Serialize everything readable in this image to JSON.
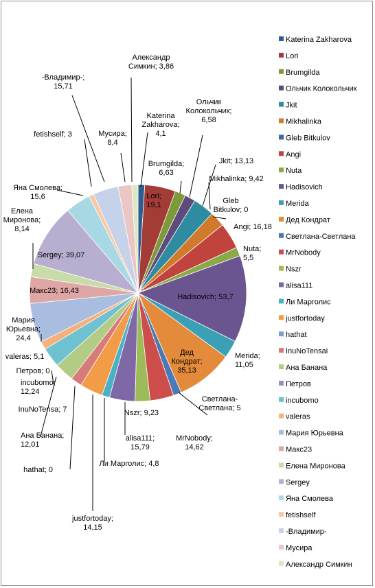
{
  "chart_data": {
    "type": "pie",
    "title": "",
    "legend_position": "right",
    "slices": [
      {
        "name": "Katerina Zakharova",
        "value": 4.1,
        "label": "Katerina\nZakharova;\n4,1",
        "color": "#2e5d8f"
      },
      {
        "name": "Lori",
        "value": 19.1,
        "label": "Lori;\n19,1",
        "color": "#a33b36"
      },
      {
        "name": "Brumgilda",
        "value": 6.63,
        "label": "Brumgilda;\n6,63",
        "color": "#7d9a3a"
      },
      {
        "name": "Ольчик Колокольчик",
        "value": 6.58,
        "label": "Ольчик\nКолокольчик;\n6,58",
        "color": "#5e4a7d"
      },
      {
        "name": "Jkit",
        "value": 13.13,
        "label": "Jkit; 13,13",
        "color": "#2f8ba0"
      },
      {
        "name": "Mikhalinka",
        "value": 9.42,
        "label": "Mikhalinka; 9,42",
        "color": "#d07a2c"
      },
      {
        "name": "Gleb Bitkulov",
        "value": 0,
        "label": "Gleb\nBitkulov; 0",
        "color": "#3b6aa0"
      },
      {
        "name": "Angi",
        "value": 16.18,
        "label": "Angi; 16,18",
        "color": "#c0433e"
      },
      {
        "name": "Nuta",
        "value": 5.5,
        "label": "Nuta;\n5,5",
        "color": "#8aaa48"
      },
      {
        "name": "Hadisovich",
        "value": 53.7,
        "label": "Hadisovich; 53,7",
        "color": "#6b5591"
      },
      {
        "name": "Merida",
        "value": 11.05,
        "label": "Merida;\n11,05",
        "color": "#3ba0b5"
      },
      {
        "name": "Дед Кондрат",
        "value": 35.13,
        "label": "Дед\nКондрат;\n35,13",
        "color": "#e38b3a"
      },
      {
        "name": "Светлана-Светлана",
        "value": 5,
        "label": "Светлана-\nСветлана; 5",
        "color": "#4a79b5"
      },
      {
        "name": "MrNobody",
        "value": 14.62,
        "label": "MrNobody;\n14,62",
        "color": "#cc4d49"
      },
      {
        "name": "Nszr",
        "value": 9.23,
        "label": "Nszr; 9,23",
        "color": "#9dbb5a"
      },
      {
        "name": "alisa111",
        "value": 15.79,
        "label": "alisa111;\n15,79",
        "color": "#7f68a6"
      },
      {
        "name": "Ли Марголис",
        "value": 4.8,
        "label": "Ли Марголис; 4,8",
        "color": "#4bb0c6"
      },
      {
        "name": "justfortoday",
        "value": 14.15,
        "label": "justfortoday;\n14,15",
        "color": "#f29c47"
      },
      {
        "name": "hathat",
        "value": 0,
        "label": "hathat; 0",
        "color": "#7a9fd0"
      },
      {
        "name": "InuNoTensai",
        "value": 7,
        "label": "InuNoTensa; 7",
        "color": "#d77b78"
      },
      {
        "name": "Ана Банана",
        "value": 12.01,
        "label": "Ана Банана;\n12,01",
        "color": "#b3cc85"
      },
      {
        "name": "Петров",
        "value": 0,
        "label": "Петров; 0",
        "color": "#9c8cbd"
      },
      {
        "name": "incubomo",
        "value": 12.24,
        "label": "incubomo;\n12,24",
        "color": "#6dc1d1"
      },
      {
        "name": "valeras",
        "value": 5.1,
        "label": "valeras; 5,1",
        "color": "#f6b07b"
      },
      {
        "name": "Мария Юрьевна",
        "value": 24.4,
        "label": "Мария\nЮрьевна;\n24,4",
        "color": "#a9bde0"
      },
      {
        "name": "Макс23",
        "value": 16.43,
        "label": "Макс23; 16,43",
        "color": "#dea6a4"
      },
      {
        "name": "Елена Миронова",
        "value": 8.14,
        "label": "Елена\nМиронова;\n8,14",
        "color": "#c8dba9"
      },
      {
        "name": "Sergey",
        "value": 39.07,
        "label": "Sergey; 39,07",
        "color": "#b8aed0"
      },
      {
        "name": "Яна Смолева",
        "value": 15.6,
        "label": "Яна Смолева;\n15,6",
        "color": "#a8d8e3"
      },
      {
        "name": "fetishself",
        "value": 3,
        "label": "fetishself; 3",
        "color": "#f9c8a3"
      },
      {
        "name": "-Владимир-",
        "value": 15.71,
        "label": "-Владимир-;\n15,71",
        "color": "#c6d2ea"
      },
      {
        "name": "Мусира",
        "value": 8.4,
        "label": "Мусира;\n8,4",
        "color": "#eac6c4"
      },
      {
        "name": "Александр Симкин",
        "value": 3.86,
        "label": "Александр\nСимкин; 3,86",
        "color": "#dce7c6"
      }
    ]
  }
}
